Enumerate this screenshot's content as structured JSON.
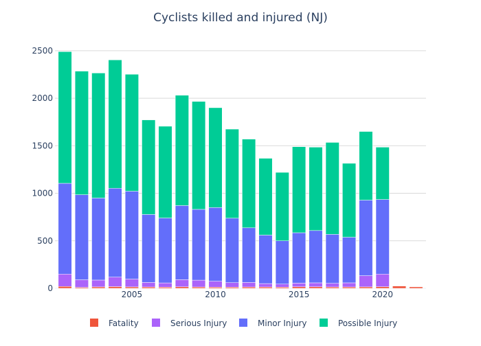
{
  "chart_data": {
    "type": "bar",
    "stacked": true,
    "title": "Cyclists killed and injured (NJ)",
    "xlabel": "",
    "ylabel": "",
    "x": [
      2001,
      2002,
      2003,
      2004,
      2005,
      2006,
      2007,
      2008,
      2009,
      2010,
      2011,
      2012,
      2013,
      2014,
      2015,
      2016,
      2017,
      2018,
      2019,
      2020,
      2021,
      2022
    ],
    "x_ticks": [
      2005,
      2010,
      2015,
      2020
    ],
    "x_range": [
      2000.4,
      2022.6
    ],
    "ylim": [
      0,
      2600
    ],
    "y_ticks": [
      0,
      500,
      1000,
      1500,
      2000,
      2500
    ],
    "grid": true,
    "legend_position": "bottom",
    "series": [
      {
        "name": "Fatality",
        "color": "#EF553B",
        "values": [
          20,
          10,
          15,
          18,
          15,
          14,
          12,
          16,
          14,
          12,
          12,
          14,
          14,
          12,
          16,
          16,
          14,
          14,
          15,
          17,
          24,
          15
        ]
      },
      {
        "name": "Serious Injury",
        "color": "#AB63FA",
        "values": [
          130,
          80,
          72,
          100,
          82,
          48,
          45,
          75,
          72,
          63,
          48,
          48,
          36,
          33,
          39,
          42,
          39,
          44,
          118,
          133,
          0,
          0
        ]
      },
      {
        "name": "Minor Injury",
        "color": "#636EFA",
        "values": [
          955,
          895,
          863,
          935,
          925,
          715,
          683,
          780,
          745,
          775,
          678,
          575,
          510,
          455,
          530,
          550,
          515,
          480,
          795,
          785,
          0,
          0
        ]
      },
      {
        "name": "Possible Injury",
        "color": "#00CC96",
        "values": [
          1385,
          1300,
          1315,
          1350,
          1230,
          995,
          965,
          1160,
          1135,
          1050,
          937,
          933,
          808,
          720,
          905,
          877,
          967,
          777,
          722,
          550,
          0,
          0
        ]
      }
    ]
  }
}
